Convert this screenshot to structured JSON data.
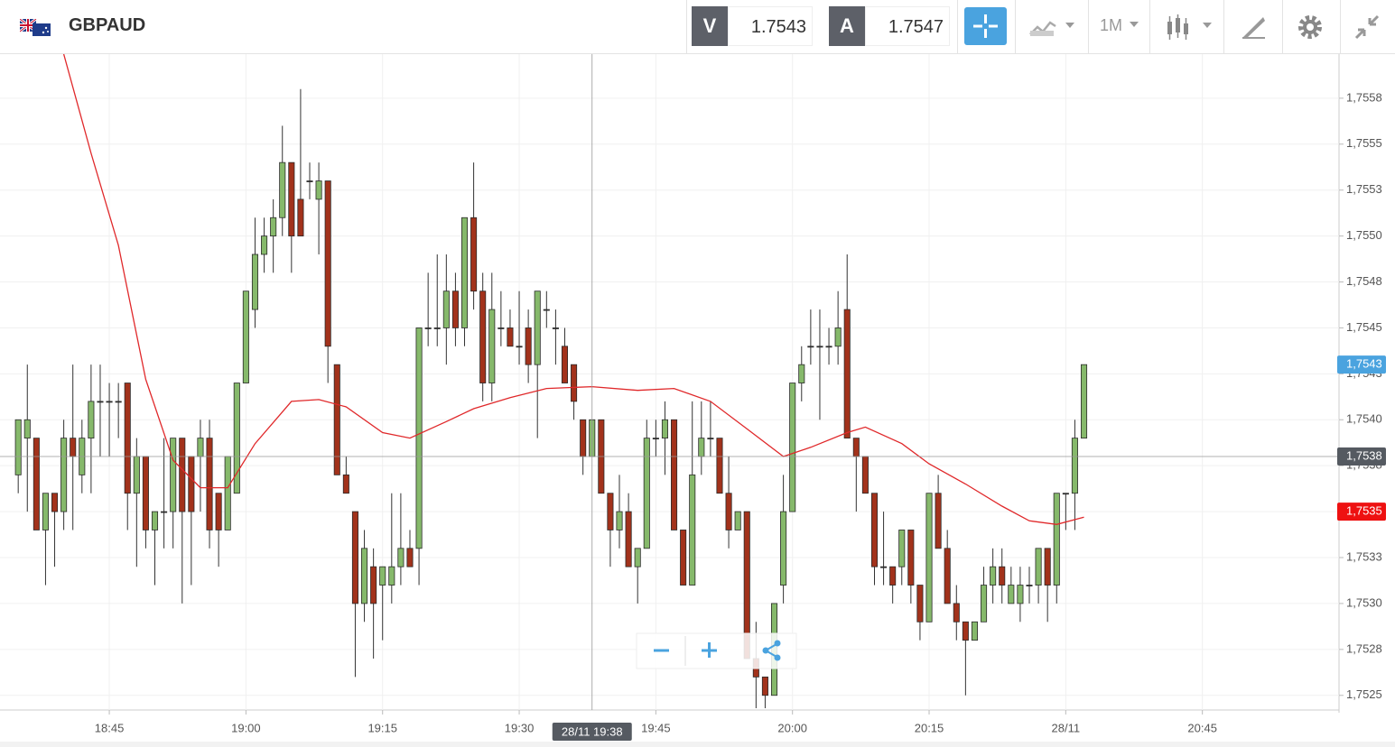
{
  "header": {
    "symbol": "GBPAUD",
    "bid_label": "V",
    "bid": 1.7543,
    "ask_label": "A",
    "ask": 1.7547,
    "timeframe": "1M"
  },
  "chart_data": {
    "type": "candlestick",
    "x": [
      "18:35",
      "18:36",
      "18:37",
      "18:38",
      "18:39",
      "18:40",
      "18:41",
      "18:42",
      "18:43",
      "18:44",
      "18:45",
      "18:46",
      "18:47",
      "18:48",
      "18:49",
      "18:50",
      "18:51",
      "18:52",
      "18:53",
      "18:54",
      "18:55",
      "18:56",
      "18:57",
      "18:58",
      "18:59",
      "19:00",
      "19:01",
      "19:02",
      "19:03",
      "19:04",
      "19:05",
      "19:06",
      "19:07",
      "19:08",
      "19:09",
      "19:10",
      "19:11",
      "19:12",
      "19:13",
      "19:14",
      "19:15",
      "19:16",
      "19:17",
      "19:18",
      "19:19",
      "19:20",
      "19:21",
      "19:22",
      "19:23",
      "19:24",
      "19:25",
      "19:26",
      "19:27",
      "19:28",
      "19:29",
      "19:30",
      "19:31",
      "19:32",
      "19:33",
      "19:34",
      "19:35",
      "19:36",
      "19:37",
      "19:38",
      "19:39",
      "19:40",
      "19:41",
      "19:42",
      "19:43",
      "19:44",
      "19:45",
      "19:46",
      "19:47",
      "19:48",
      "19:49",
      "19:50",
      "19:51",
      "19:52",
      "19:53",
      "19:54",
      "19:55",
      "19:56",
      "19:57",
      "19:58",
      "19:59",
      "20:00",
      "20:01",
      "20:02",
      "20:03",
      "20:04",
      "20:05",
      "20:06",
      "20:07",
      "20:08",
      "20:09",
      "20:10",
      "20:11",
      "20:12",
      "20:13",
      "20:14",
      "20:15",
      "20:16",
      "20:17",
      "20:18",
      "20:19",
      "20:20",
      "20:21",
      "20:22",
      "20:23",
      "20:24",
      "20:25",
      "20:26",
      "20:27",
      "20:28",
      "20:29",
      "20:30",
      "20:31",
      "20:32"
    ],
    "open": [
      1.7537,
      1.7539,
      1.7539,
      1.7534,
      1.7536,
      1.7535,
      1.7539,
      1.7537,
      1.7539,
      1.7541,
      1.7541,
      1.7541,
      1.7542,
      1.7536,
      1.7538,
      1.7534,
      1.7535,
      1.7535,
      1.7539,
      1.7538,
      1.7538,
      1.7539,
      1.7536,
      1.7534,
      1.7536,
      1.7542,
      1.7546,
      1.7549,
      1.755,
      1.7551,
      1.7554,
      1.7552,
      1.7553,
      1.7552,
      1.7553,
      1.7543,
      1.7537,
      1.7535,
      1.753,
      1.7532,
      1.7531,
      1.7531,
      1.7532,
      1.7533,
      1.7533,
      1.7545,
      1.7545,
      1.7545,
      1.7547,
      1.7545,
      1.7551,
      1.7547,
      1.7542,
      1.7545,
      1.7545,
      1.7544,
      1.7545,
      1.7543,
      1.7546,
      1.7545,
      1.7544,
      1.7543,
      1.754,
      1.7538,
      1.754,
      1.7536,
      1.7534,
      1.7535,
      1.7532,
      1.7533,
      1.7539,
      1.7539,
      1.754,
      1.7534,
      1.7531,
      1.7538,
      1.7539,
      1.7539,
      1.7536,
      1.7534,
      1.7535,
      1.7527,
      1.7526,
      1.7525,
      1.7531,
      1.7535,
      1.7542,
      1.7544,
      1.7544,
      1.7544,
      1.7544,
      1.7546,
      1.7539,
      1.7538,
      1.7536,
      1.7532,
      1.7532,
      1.7532,
      1.7534,
      1.7531,
      1.7529,
      1.7536,
      1.7533,
      1.753,
      1.7529,
      1.7528,
      1.7529,
      1.7531,
      1.7532,
      1.753,
      1.753,
      1.7531,
      1.7531,
      1.7533,
      1.7531,
      1.7536,
      1.7536,
      1.7539
    ],
    "high": [
      1.754,
      1.7543,
      1.7539,
      1.7536,
      1.7536,
      1.754,
      1.7543,
      1.754,
      1.7543,
      1.7543,
      1.7542,
      1.7542,
      1.7542,
      1.7539,
      1.7538,
      1.7535,
      1.7539,
      1.7539,
      1.7539,
      1.7538,
      1.754,
      1.754,
      1.7536,
      1.7538,
      1.7542,
      1.7547,
      1.7551,
      1.7551,
      1.7552,
      1.7556,
      1.7554,
      1.7558,
      1.7554,
      1.7554,
      1.7553,
      1.7543,
      1.7538,
      1.7535,
      1.7534,
      1.7533,
      1.7532,
      1.7536,
      1.7536,
      1.7534,
      1.7545,
      1.7548,
      1.7549,
      1.7549,
      1.7548,
      1.7551,
      1.7554,
      1.7548,
      1.7548,
      1.7547,
      1.7546,
      1.7547,
      1.7546,
      1.7547,
      1.7547,
      1.7546,
      1.7545,
      1.7543,
      1.754,
      1.754,
      1.754,
      1.7536,
      1.7537,
      1.7536,
      1.7533,
      1.754,
      1.754,
      1.7541,
      1.754,
      1.7534,
      1.7541,
      1.7541,
      1.7541,
      1.7539,
      1.7538,
      1.7535,
      1.7535,
      1.7529,
      1.7526,
      1.753,
      1.7537,
      1.7542,
      1.7544,
      1.7546,
      1.7546,
      1.7545,
      1.7547,
      1.7549,
      1.7539,
      1.7538,
      1.7536,
      1.7535,
      1.7532,
      1.7534,
      1.7534,
      1.7531,
      1.7536,
      1.7537,
      1.7534,
      1.7531,
      1.7529,
      1.7529,
      1.7532,
      1.7533,
      1.7533,
      1.7532,
      1.7532,
      1.7532,
      1.7533,
      1.7533,
      1.7536,
      1.7536,
      1.754,
      1.7543
    ],
    "low": [
      1.7536,
      1.7535,
      1.7534,
      1.7531,
      1.7532,
      1.7534,
      1.7534,
      1.7536,
      1.7536,
      1.7538,
      1.7538,
      1.7539,
      1.7534,
      1.7532,
      1.7533,
      1.7531,
      1.7533,
      1.7533,
      1.753,
      1.7531,
      1.7535,
      1.7533,
      1.7532,
      1.7534,
      1.7536,
      1.7542,
      1.7545,
      1.7548,
      1.7548,
      1.755,
      1.7548,
      1.755,
      1.7552,
      1.7549,
      1.7542,
      1.7537,
      1.7536,
      1.7526,
      1.7529,
      1.7527,
      1.7528,
      1.753,
      1.7531,
      1.7532,
      1.7531,
      1.7544,
      1.7544,
      1.7543,
      1.7544,
      1.7544,
      1.7546,
      1.7541,
      1.7541,
      1.7544,
      1.7544,
      1.7543,
      1.7542,
      1.7539,
      1.7545,
      1.7543,
      1.7542,
      1.754,
      1.7537,
      1.7538,
      1.7536,
      1.7532,
      1.7533,
      1.7532,
      1.753,
      1.7533,
      1.7538,
      1.7537,
      1.7534,
      1.7531,
      1.7531,
      1.7537,
      1.7538,
      1.7536,
      1.7533,
      1.7534,
      1.7527,
      1.7524,
      1.7524,
      1.7525,
      1.753,
      1.7535,
      1.7541,
      1.7543,
      1.754,
      1.7543,
      1.7543,
      1.7539,
      1.7535,
      1.7536,
      1.7531,
      1.7531,
      1.753,
      1.7531,
      1.753,
      1.7528,
      1.7529,
      1.7533,
      1.753,
      1.7528,
      1.7525,
      1.7528,
      1.7529,
      1.753,
      1.753,
      1.753,
      1.7529,
      1.753,
      1.753,
      1.7529,
      1.753,
      1.7534,
      1.7534,
      1.7539
    ],
    "close": [
      1.754,
      1.754,
      1.7534,
      1.7536,
      1.7535,
      1.7539,
      1.7538,
      1.7539,
      1.7541,
      1.7541,
      1.7541,
      1.7541,
      1.7536,
      1.7538,
      1.7534,
      1.7535,
      1.7535,
      1.7539,
      1.7535,
      1.7535,
      1.7539,
      1.7534,
      1.7534,
      1.7538,
      1.7542,
      1.7547,
      1.7549,
      1.755,
      1.7551,
      1.7554,
      1.755,
      1.755,
      1.7553,
      1.7553,
      1.7544,
      1.7537,
      1.7536,
      1.753,
      1.7533,
      1.753,
      1.7532,
      1.7532,
      1.7533,
      1.7532,
      1.7545,
      1.7545,
      1.7545,
      1.7547,
      1.7545,
      1.7551,
      1.7547,
      1.7542,
      1.7546,
      1.7545,
      1.7544,
      1.7544,
      1.7543,
      1.7547,
      1.7546,
      1.7545,
      1.7542,
      1.7541,
      1.7538,
      1.754,
      1.7536,
      1.7534,
      1.7535,
      1.7532,
      1.7533,
      1.7539,
      1.7539,
      1.754,
      1.7534,
      1.7531,
      1.7537,
      1.7539,
      1.7539,
      1.7536,
      1.7534,
      1.7535,
      1.7527,
      1.7526,
      1.7525,
      1.753,
      1.7535,
      1.7542,
      1.7543,
      1.7544,
      1.7544,
      1.7544,
      1.7545,
      1.7539,
      1.7538,
      1.7536,
      1.7532,
      1.7532,
      1.7531,
      1.7534,
      1.7531,
      1.7529,
      1.7536,
      1.7533,
      1.753,
      1.7529,
      1.7528,
      1.7529,
      1.7531,
      1.7532,
      1.7531,
      1.7531,
      1.7531,
      1.7531,
      1.7533,
      1.7531,
      1.7536,
      1.7536,
      1.7539,
      1.7543
    ],
    "up_color": "#86b96b",
    "down_color": "#a2321b",
    "moving_average": {
      "color": "#e0282a",
      "x": [
        "18:40",
        "18:43",
        "18:46",
        "18:49",
        "18:52",
        "18:55",
        "18:58",
        "19:01",
        "19:05",
        "19:08",
        "19:11",
        "19:15",
        "19:18",
        "19:22",
        "19:25",
        "19:29",
        "19:33",
        "19:38",
        "19:43",
        "19:47",
        "19:51",
        "19:55",
        "19:59",
        "20:02",
        "20:06",
        "20:08",
        "20:12",
        "20:15",
        "20:19",
        "20:23",
        "20:26",
        "20:29",
        "20:32"
      ],
      "values": [
        1.75599,
        1.75545,
        1.75495,
        1.75422,
        1.75378,
        1.75363,
        1.75363,
        1.75387,
        1.7541,
        1.75411,
        1.75407,
        1.75393,
        1.7539,
        1.75399,
        1.75406,
        1.75412,
        1.75417,
        1.75418,
        1.75416,
        1.75417,
        1.7541,
        1.75395,
        1.7538,
        1.75385,
        1.75393,
        1.75396,
        1.75387,
        1.75376,
        1.75365,
        1.75353,
        1.75345,
        1.75343,
        1.75347
      ]
    },
    "xlim": [
      "18:33",
      "21:00"
    ],
    "xticks": [
      "18:45",
      "19:00",
      "19:15",
      "19:30",
      "19:45",
      "20:00",
      "20:15",
      {
        "value": "20:30",
        "label": "28/11"
      },
      "20:45"
    ],
    "ylim": [
      1.75243,
      1.75599
    ],
    "yticks": [
      {
        "value": 1.75575,
        "label": "1,7558"
      },
      {
        "value": 1.7555,
        "label": "1,7555"
      },
      {
        "value": 1.75525,
        "label": "1,7553"
      },
      {
        "value": 1.755,
        "label": "1,7550"
      },
      {
        "value": 1.75475,
        "label": "1,7548"
      },
      {
        "value": 1.7545,
        "label": "1,7545"
      },
      {
        "value": 1.75425,
        "label": "1,7543"
      },
      {
        "value": 1.754,
        "label": "1,7540"
      },
      {
        "value": 1.75375,
        "label": "1,7538"
      },
      {
        "value": 1.7535,
        "label": "1,7535"
      },
      {
        "value": 1.75325,
        "label": "1,7533"
      },
      {
        "value": 1.753,
        "label": "1,7530"
      },
      {
        "value": 1.75275,
        "label": "1,7528"
      },
      {
        "value": 1.7525,
        "label": "1,7525"
      }
    ],
    "grid": true,
    "crosshair": {
      "x": "19:38",
      "x_label": "28/11 19:38",
      "y": 1.7538,
      "y_label": "1,7538"
    },
    "price_tags": [
      {
        "value": 1.7543,
        "label": "1,7543",
        "color": "#4aa3df"
      },
      {
        "value": 1.7535,
        "label": "1,7535",
        "color": "#ee1111"
      }
    ]
  }
}
